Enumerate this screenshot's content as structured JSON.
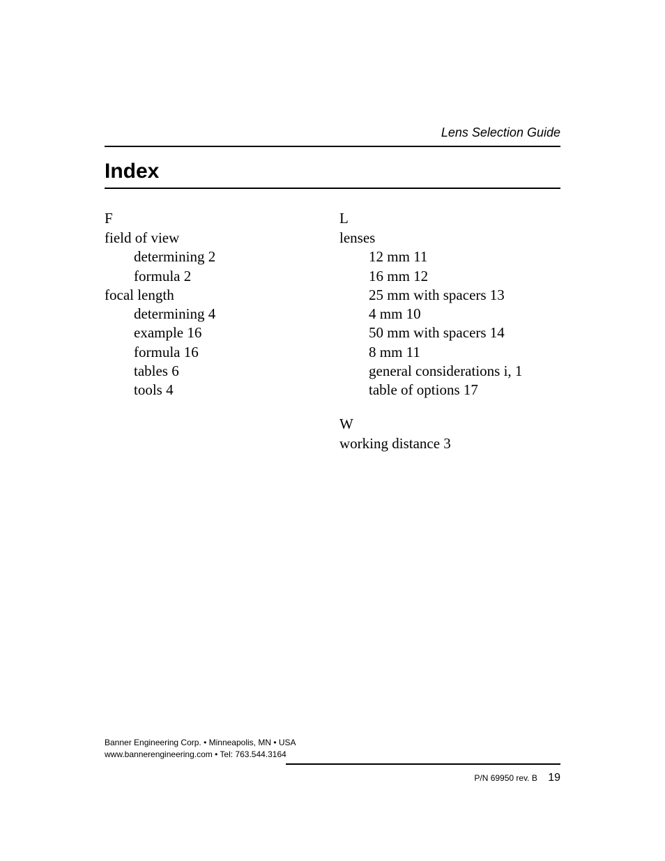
{
  "header": {
    "doc_title": "Lens Selection Guide"
  },
  "index": {
    "title": "Index",
    "left": {
      "letter": "F",
      "entries": [
        {
          "term": "field of view",
          "subs": [
            "determining 2",
            "formula 2"
          ]
        },
        {
          "term": "focal length",
          "subs": [
            "determining 4",
            "example 16",
            "formula 16",
            "tables 6",
            "tools 4"
          ]
        }
      ]
    },
    "right": {
      "sections": [
        {
          "letter": "L",
          "entries": [
            {
              "term": "lenses",
              "subs": [
                "12 mm 11",
                "16 mm 12",
                "25 mm with spacers 13",
                "4 mm 10",
                "50 mm with spacers 14",
                "8 mm 11",
                "general considerations i, 1",
                "table of options 17"
              ]
            }
          ]
        },
        {
          "letter": "W",
          "entries": [
            {
              "term": "working distance 3",
              "subs": []
            }
          ]
        }
      ]
    }
  },
  "footer": {
    "line1": "Banner Engineering Corp. • Minneapolis, MN • USA",
    "line2": "www.bannerengineering.com • Tel: 763.544.3164",
    "pn": "P/N 69950 rev. B",
    "page": "19"
  }
}
